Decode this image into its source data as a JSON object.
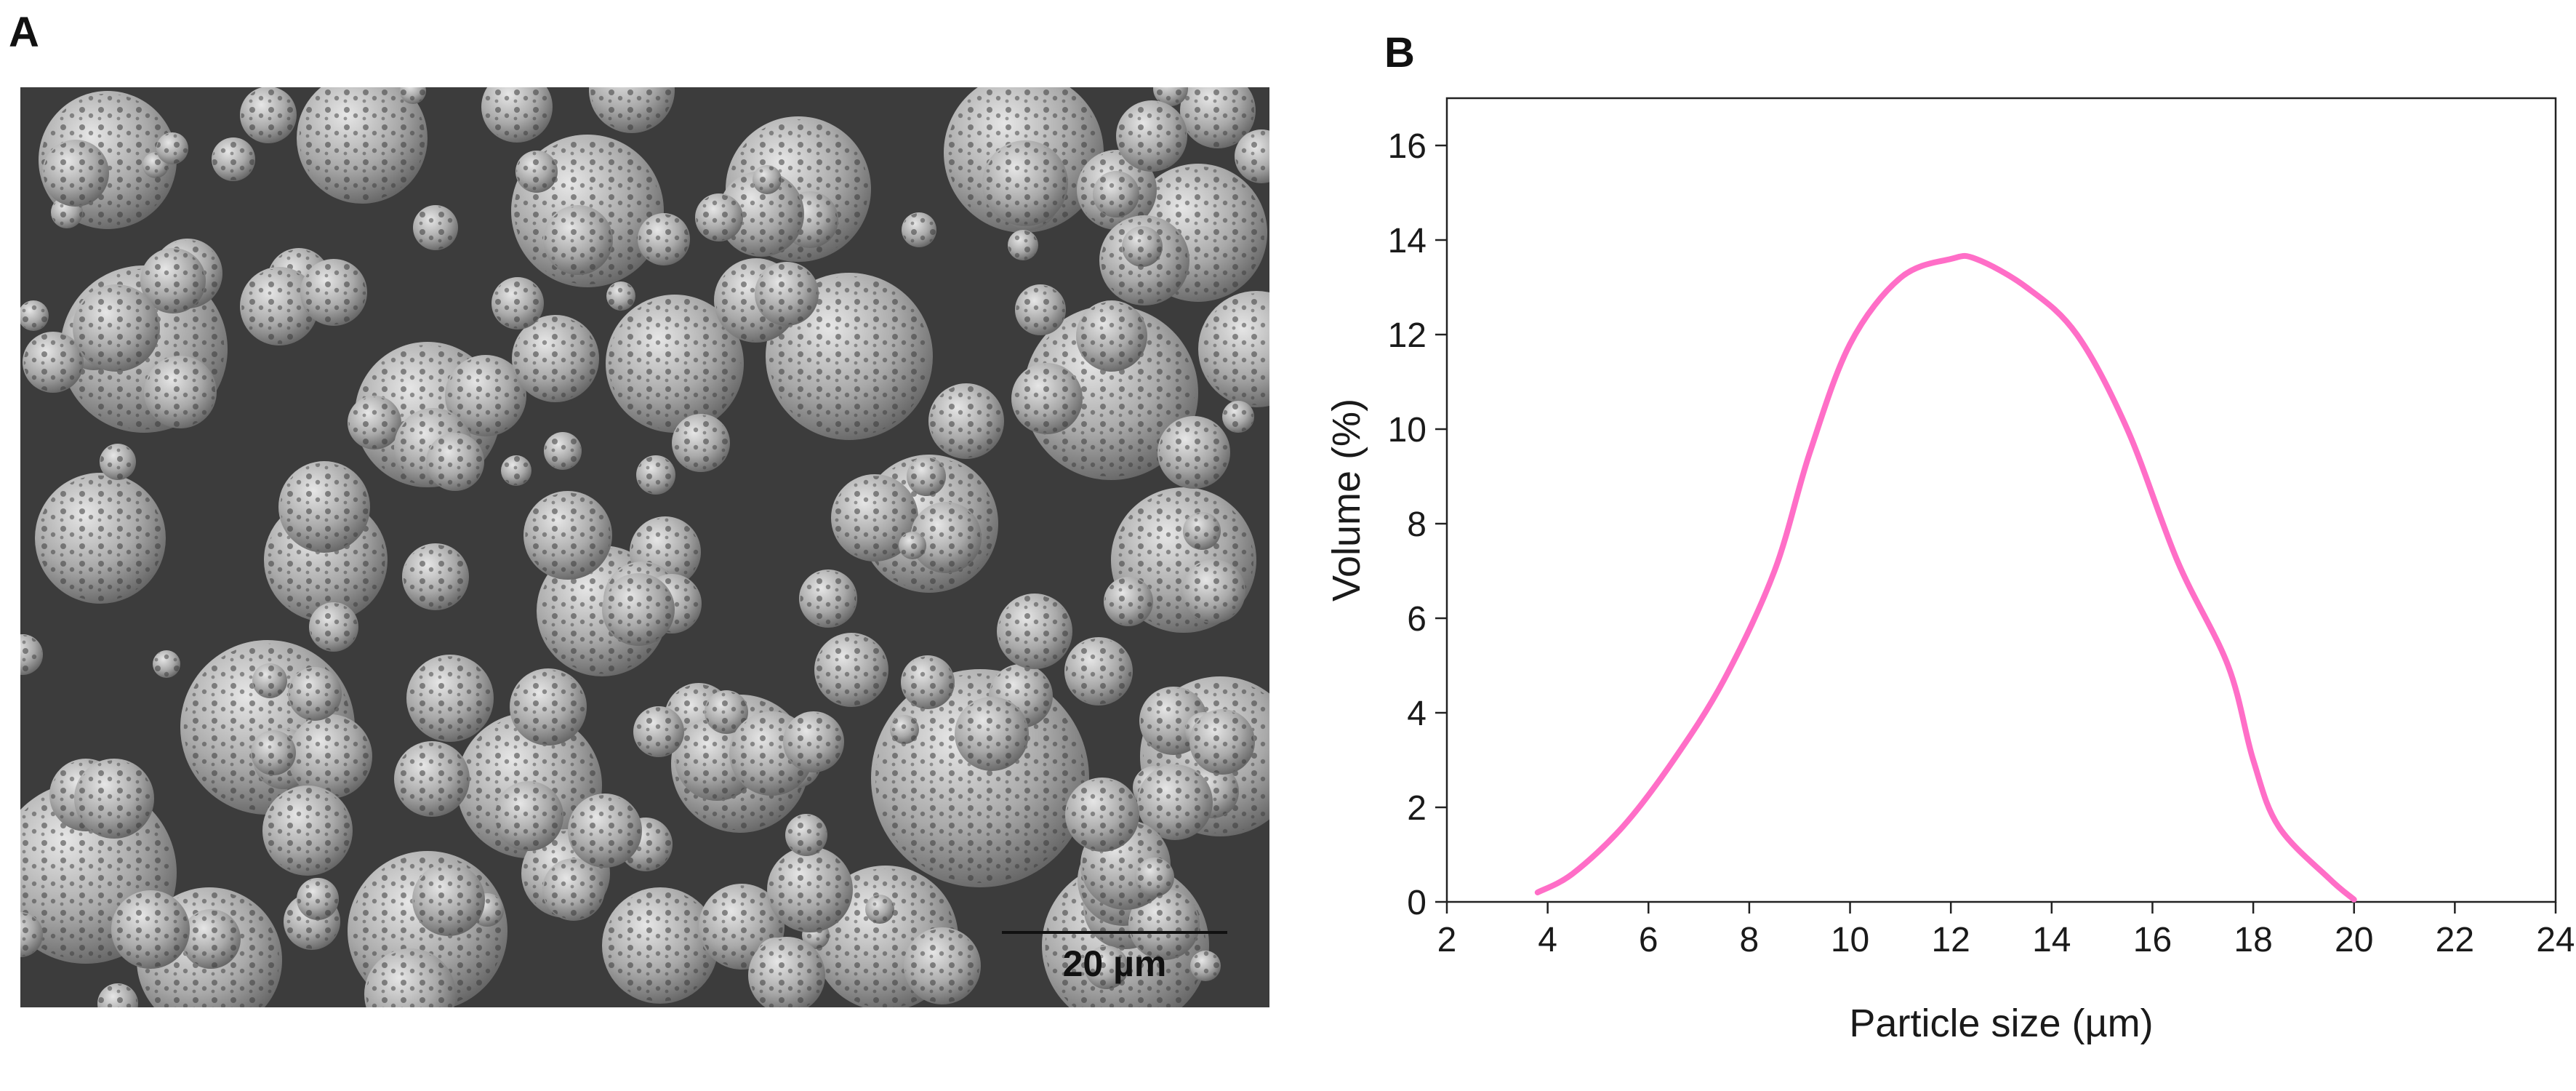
{
  "panels": {
    "a_label": "A",
    "b_label": "B"
  },
  "sem_image": {
    "scale_bar_label": "20 µm",
    "scale_bar_length_um": 20
  },
  "chart_data": {
    "type": "line",
    "title": "",
    "xlabel": "Particle size (µm)",
    "ylabel": "Volume (%)",
    "xlim": [
      2,
      24
    ],
    "ylim": [
      0,
      17
    ],
    "xticks": [
      2,
      4,
      6,
      8,
      10,
      12,
      14,
      16,
      18,
      20,
      22,
      24
    ],
    "yticks": [
      0,
      2,
      4,
      6,
      8,
      10,
      12,
      14,
      16
    ],
    "grid": false,
    "legend": "none",
    "series": [
      {
        "name": "",
        "color": "#ff6ec7",
        "x": [
          3.8,
          4.5,
          5.5,
          6.5,
          7.5,
          8.5,
          9.2,
          10.0,
          11.0,
          12.0,
          12.5,
          13.5,
          14.5,
          15.5,
          16.5,
          17.5,
          18.0,
          18.5,
          19.5,
          20.0
        ],
        "y": [
          0.2,
          0.6,
          1.6,
          3.0,
          4.7,
          7.0,
          9.5,
          11.8,
          13.2,
          13.6,
          13.6,
          13.0,
          12.0,
          10.0,
          7.2,
          5.0,
          3.0,
          1.6,
          0.5,
          0.05
        ]
      }
    ]
  }
}
